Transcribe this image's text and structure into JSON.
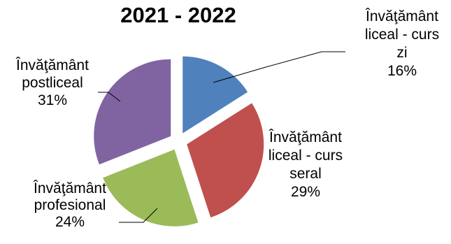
{
  "chart_data": {
    "type": "pie",
    "title": "2021 - 2022",
    "exploded": true,
    "slices": [
      {
        "lines": [
          "Învăţământ",
          "liceal - curs",
          "zi"
        ],
        "value": 16,
        "pct": "16%",
        "color": "#4f81bd"
      },
      {
        "lines": [
          "Învăţământ",
          "liceal - curs",
          "seral"
        ],
        "value": 29,
        "pct": "29%",
        "color": "#c0504d"
      },
      {
        "lines": [
          "Învăţământ",
          "profesional"
        ],
        "value": 24,
        "pct": "24%",
        "color": "#9bbb59"
      },
      {
        "lines": [
          "Învăţământ",
          "postliceal"
        ],
        "value": 31,
        "pct": "31%",
        "color": "#8064a2"
      }
    ]
  }
}
